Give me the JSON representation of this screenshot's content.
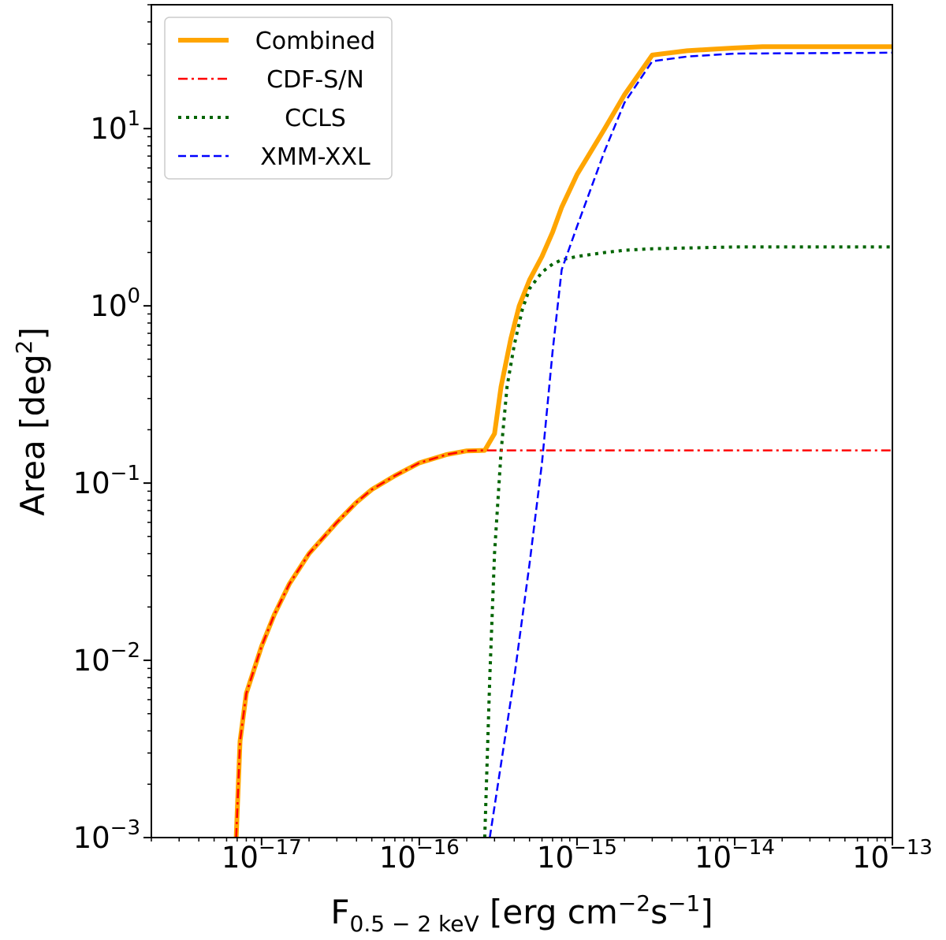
{
  "chart_data": {
    "type": "line",
    "xscale": "log",
    "yscale": "log",
    "xlim": [
      2e-18,
      1e-13
    ],
    "ylim": [
      0.001,
      50
    ],
    "xticks": [
      {
        "value": 1e-17,
        "base": "10",
        "exp": "−17"
      },
      {
        "value": 1e-16,
        "base": "10",
        "exp": "−16"
      },
      {
        "value": 1e-15,
        "base": "10",
        "exp": "−15"
      },
      {
        "value": 1e-14,
        "base": "10",
        "exp": "−14"
      },
      {
        "value": 1e-13,
        "base": "10",
        "exp": "−13"
      }
    ],
    "yticks": [
      {
        "value": 0.001,
        "base": "10",
        "exp": "−3"
      },
      {
        "value": 0.01,
        "base": "10",
        "exp": "−2"
      },
      {
        "value": 0.1,
        "base": "10",
        "exp": "−1"
      },
      {
        "value": 1,
        "base": "10",
        "exp": "0"
      },
      {
        "value": 10,
        "base": "10",
        "exp": "1"
      }
    ],
    "xlabel": {
      "main": "F",
      "sub": "0.5 − 2 keV",
      "units_a": " [erg cm",
      "sup_a": "−2",
      "units_b": "s",
      "sup_b": "−1",
      "units_c": "]"
    },
    "ylabel": {
      "main": "Area [deg",
      "sup": "2",
      "end": "]"
    },
    "legend_position": "upper-left",
    "series": [
      {
        "name": "Combined",
        "color": "#FFA500",
        "style": "solid",
        "x": [
          6.9e-18,
          7.3e-18,
          8e-18,
          9e-18,
          1e-17,
          1.2e-17,
          1.5e-17,
          2e-17,
          3e-17,
          4e-17,
          5e-17,
          7e-17,
          1e-16,
          1.5e-16,
          2e-16,
          2.6e-16,
          3e-16,
          3.3e-16,
          3.8e-16,
          4.3e-16,
          5e-16,
          6e-16,
          7e-16,
          8e-16,
          1e-15,
          1.5e-15,
          2e-15,
          3e-15,
          5e-15,
          7e-15,
          1e-14,
          1.5e-14,
          3e-14,
          1e-13
        ],
        "y": [
          0.001,
          0.0035,
          0.0065,
          0.009,
          0.012,
          0.018,
          0.027,
          0.04,
          0.06,
          0.078,
          0.092,
          0.11,
          0.13,
          0.145,
          0.152,
          0.153,
          0.19,
          0.35,
          0.65,
          1.0,
          1.4,
          1.9,
          2.6,
          3.6,
          5.5,
          10.0,
          15.5,
          26.0,
          27.5,
          28.0,
          28.5,
          29.0,
          29.0,
          29.0
        ]
      },
      {
        "name": "CDF-S/N",
        "color": "#FF0000",
        "style": "dashdot",
        "x": [
          6.9e-18,
          7.3e-18,
          8e-18,
          9e-18,
          1e-17,
          1.2e-17,
          1.5e-17,
          2e-17,
          3e-17,
          4e-17,
          5e-17,
          7e-17,
          1e-16,
          1.5e-16,
          2e-16,
          2.6e-16,
          1e-13
        ],
        "y": [
          0.001,
          0.0035,
          0.0065,
          0.009,
          0.012,
          0.018,
          0.027,
          0.04,
          0.06,
          0.078,
          0.092,
          0.11,
          0.13,
          0.145,
          0.152,
          0.153,
          0.153
        ]
      },
      {
        "name": "CCLS",
        "color": "#006400",
        "style": "dotted",
        "x": [
          2.6e-16,
          2.8e-16,
          3e-16,
          3.3e-16,
          3.6e-16,
          4e-16,
          4.5e-16,
          5e-16,
          6e-16,
          7e-16,
          8e-16,
          1e-15,
          1.5e-15,
          2e-15,
          3e-15,
          1e-14,
          1e-13
        ],
        "y": [
          0.001,
          0.008,
          0.04,
          0.15,
          0.35,
          0.6,
          0.95,
          1.25,
          1.55,
          1.72,
          1.82,
          1.9,
          2.0,
          2.06,
          2.1,
          2.15,
          2.15
        ]
      },
      {
        "name": "XMM-XXL",
        "color": "#0000FF",
        "style": "dashed",
        "x": [
          2.8e-16,
          4e-16,
          5e-16,
          6e-16,
          7e-16,
          8e-16,
          1e-15,
          1.5e-15,
          2e-15,
          3e-15,
          5e-15,
          1e-14,
          1e-13
        ],
        "y": [
          0.001,
          0.008,
          0.035,
          0.13,
          0.55,
          1.6,
          2.8,
          7.5,
          14.0,
          24.0,
          25.5,
          26.5,
          26.8
        ]
      }
    ]
  }
}
